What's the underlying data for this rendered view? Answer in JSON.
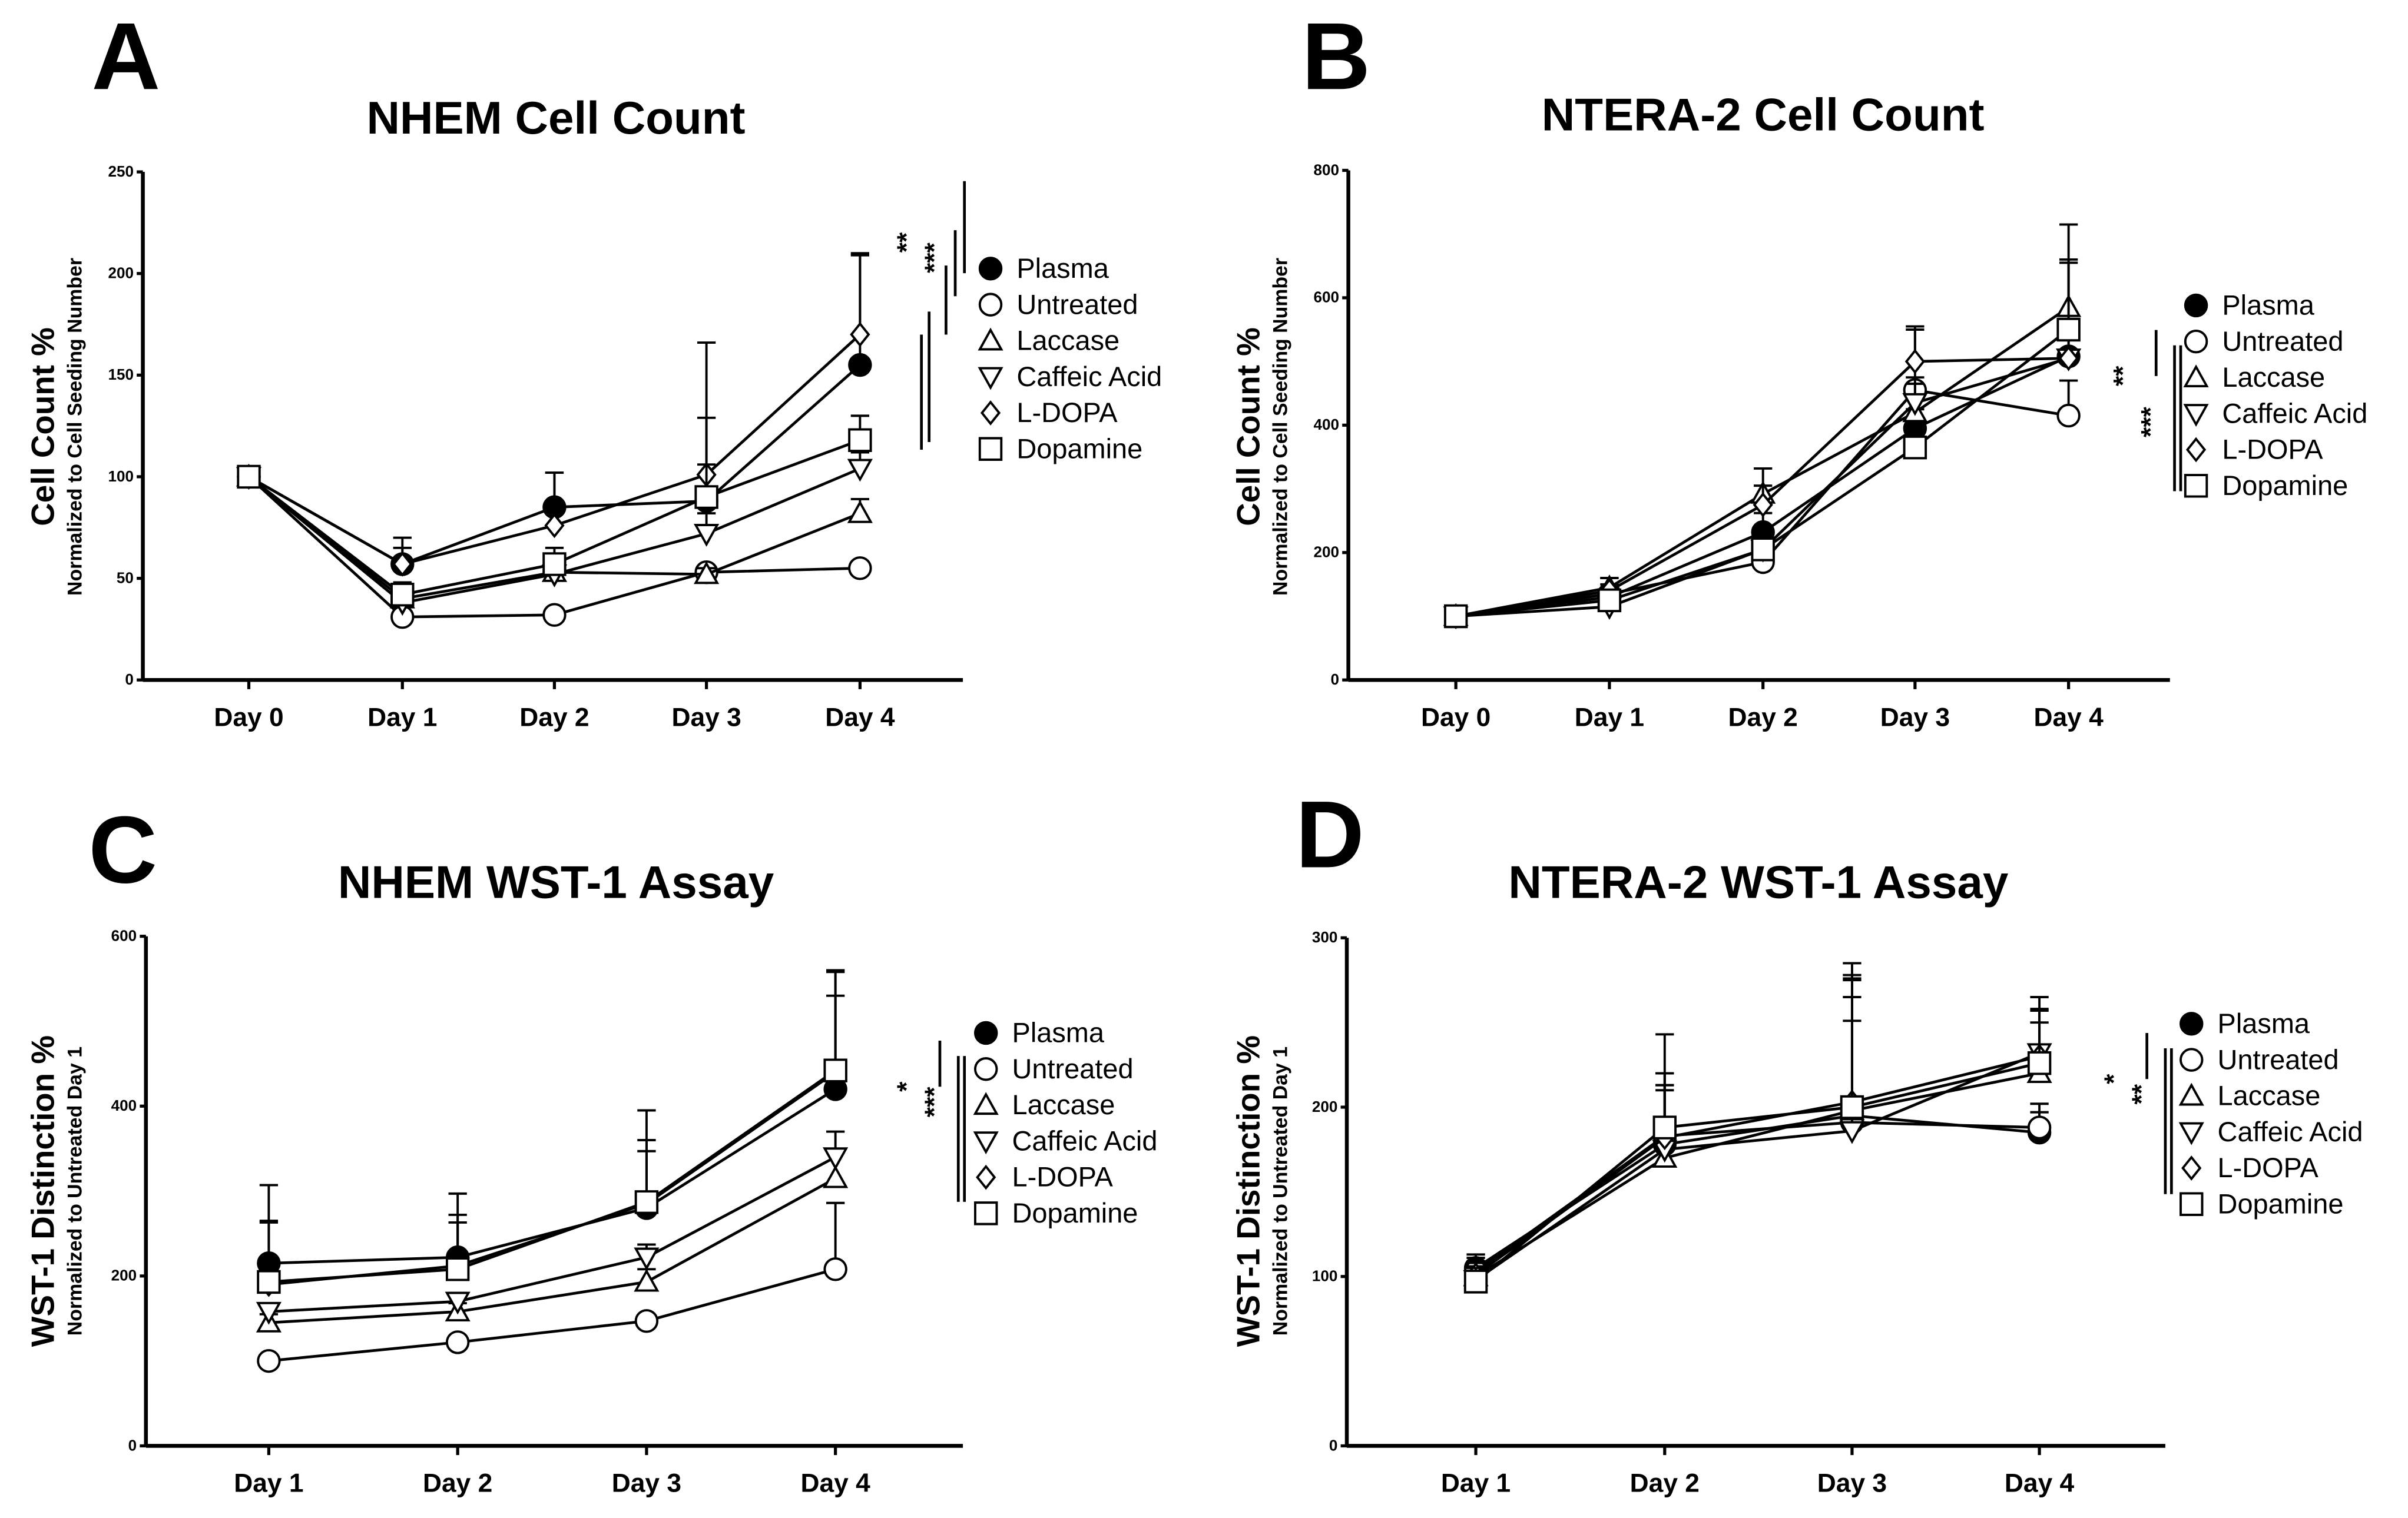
{
  "legend": [
    "Plasma",
    "Untreated",
    "Laccase",
    "Caffeic Acid",
    "L-DOPA",
    "Dopamine"
  ],
  "chart_data": [
    {
      "panel": "A",
      "type": "line",
      "title": "NHEM Cell Count",
      "ylabel": "Cell Count %",
      "ysublabel": "Normalized to Cell Seeding Number",
      "categories": [
        "Day 0",
        "Day 1",
        "Day 2",
        "Day 3",
        "Day 4"
      ],
      "ylim": [
        0,
        250
      ],
      "yticks": [
        0,
        50,
        100,
        150,
        200,
        250
      ],
      "series": [
        {
          "name": "Plasma",
          "values": [
            100,
            57,
            85,
            88,
            155
          ],
          "err": [
            0,
            13,
            17,
            78,
            54
          ]
        },
        {
          "name": "Untreated",
          "values": [
            100,
            31,
            32,
            53,
            55
          ],
          "err": [
            0,
            2,
            2,
            3,
            3
          ]
        },
        {
          "name": "Laccase",
          "values": [
            100,
            40,
            53,
            52,
            82
          ],
          "err": [
            0,
            5,
            4,
            3,
            7
          ]
        },
        {
          "name": "Caffeic Acid",
          "values": [
            100,
            38,
            52,
            72,
            104
          ],
          "err": [
            0,
            6,
            5,
            10,
            8
          ]
        },
        {
          "name": "L-DOPA",
          "values": [
            100,
            57,
            76,
            101,
            170
          ],
          "err": [
            0,
            8,
            26,
            28,
            40
          ]
        },
        {
          "name": "Dopamine",
          "values": [
            100,
            42,
            57,
            90,
            118
          ],
          "err": [
            0,
            6,
            8,
            16,
            12
          ]
        }
      ],
      "significance": [
        "**",
        "***"
      ]
    },
    {
      "panel": "B",
      "type": "line",
      "title": "NTERA-2 Cell Count",
      "ylabel": "Cell Count %",
      "ysublabel": "Normalized to Cell Seeding Number",
      "categories": [
        "Day 0",
        "Day 1",
        "Day 2",
        "Day 3",
        "Day 4"
      ],
      "ylim": [
        0,
        800
      ],
      "yticks": [
        0,
        200,
        400,
        600,
        800
      ],
      "series": [
        {
          "name": "Plasma",
          "values": [
            100,
            130,
            232,
            395,
            508
          ],
          "err": [
            0,
            15,
            30,
            30,
            30
          ]
        },
        {
          "name": "Untreated",
          "values": [
            100,
            135,
            185,
            455,
            415
          ],
          "err": [
            0,
            15,
            20,
            20,
            55
          ]
        },
        {
          "name": "Laccase",
          "values": [
            100,
            145,
            292,
            420,
            585
          ],
          "err": [
            0,
            15,
            40,
            130,
            130
          ]
        },
        {
          "name": "Caffeic Acid",
          "values": [
            100,
            115,
            205,
            435,
            505
          ],
          "err": [
            0,
            15,
            20,
            30,
            50
          ]
        },
        {
          "name": "L-DOPA",
          "values": [
            100,
            140,
            275,
            500,
            505
          ],
          "err": [
            0,
            20,
            30,
            55,
            150
          ]
        },
        {
          "name": "Dopamine",
          "values": [
            100,
            125,
            205,
            365,
            550
          ],
          "err": [
            0,
            15,
            20,
            30,
            110
          ]
        }
      ],
      "significance": [
        "**",
        "***"
      ]
    },
    {
      "panel": "C",
      "type": "line",
      "title": "NHEM WST-1 Assay",
      "ylabel": "WST-1 Distinction %",
      "ysublabel": "Normalized to Untreated Day 1",
      "categories": [
        "Day 1",
        "Day 2",
        "Day 3",
        "Day 4"
      ],
      "ylim": [
        0,
        600
      ],
      "yticks": [
        0,
        200,
        400,
        600
      ],
      "series": [
        {
          "name": "Plasma",
          "values": [
            215,
            222,
            280,
            420
          ],
          "err": [
            92,
            75,
            115,
            138
          ]
        },
        {
          "name": "Untreated",
          "values": [
            100,
            122,
            147,
            208
          ],
          "err": [
            5,
            5,
            5,
            78
          ]
        },
        {
          "name": "Laccase",
          "values": [
            145,
            158,
            193,
            315
          ],
          "err": [
            10,
            10,
            15,
            30
          ]
        },
        {
          "name": "Caffeic Acid",
          "values": [
            158,
            170,
            222,
            340
          ],
          "err": [
            10,
            10,
            15,
            30
          ]
        },
        {
          "name": "L-DOPA",
          "values": [
            190,
            212,
            285,
            440
          ],
          "err": [
            75,
            60,
            75,
            90
          ]
        },
        {
          "name": "Dopamine",
          "values": [
            193,
            208,
            287,
            442
          ],
          "err": [
            70,
            55,
            60,
            118
          ]
        }
      ],
      "significance": [
        "*",
        "***"
      ]
    },
    {
      "panel": "D",
      "type": "line",
      "title": "NTERA-2 WST-1 Assay",
      "ylabel": "WST-1 Distinction %",
      "ysublabel": "Normalized to Untreated Day 1",
      "categories": [
        "Day 1",
        "Day 2",
        "Day 3",
        "Day 4"
      ],
      "ylim": [
        0,
        300
      ],
      "yticks": [
        0,
        100,
        200,
        300
      ],
      "series": [
        {
          "name": "Plasma",
          "values": [
            105,
            178,
            195,
            185
          ],
          "err": [
            8,
            35,
            70,
            12
          ]
        },
        {
          "name": "Untreated",
          "values": [
            103,
            183,
            191,
            188
          ],
          "err": [
            8,
            30,
            60,
            14
          ]
        },
        {
          "name": "Laccase",
          "values": [
            100,
            170,
            198,
            220
          ],
          "err": [
            8,
            40,
            80,
            30
          ]
        },
        {
          "name": "Caffeic Acid",
          "values": [
            98,
            175,
            186,
            232
          ],
          "err": [
            8,
            45,
            90,
            25
          ]
        },
        {
          "name": "L-DOPA",
          "values": [
            101,
            182,
            203,
            230
          ],
          "err": [
            8,
            38,
            72,
            35
          ]
        },
        {
          "name": "Dopamine",
          "values": [
            97,
            188,
            200,
            226
          ],
          "err": [
            8,
            55,
            85,
            32
          ]
        }
      ],
      "significance": [
        "*",
        "**"
      ]
    }
  ]
}
